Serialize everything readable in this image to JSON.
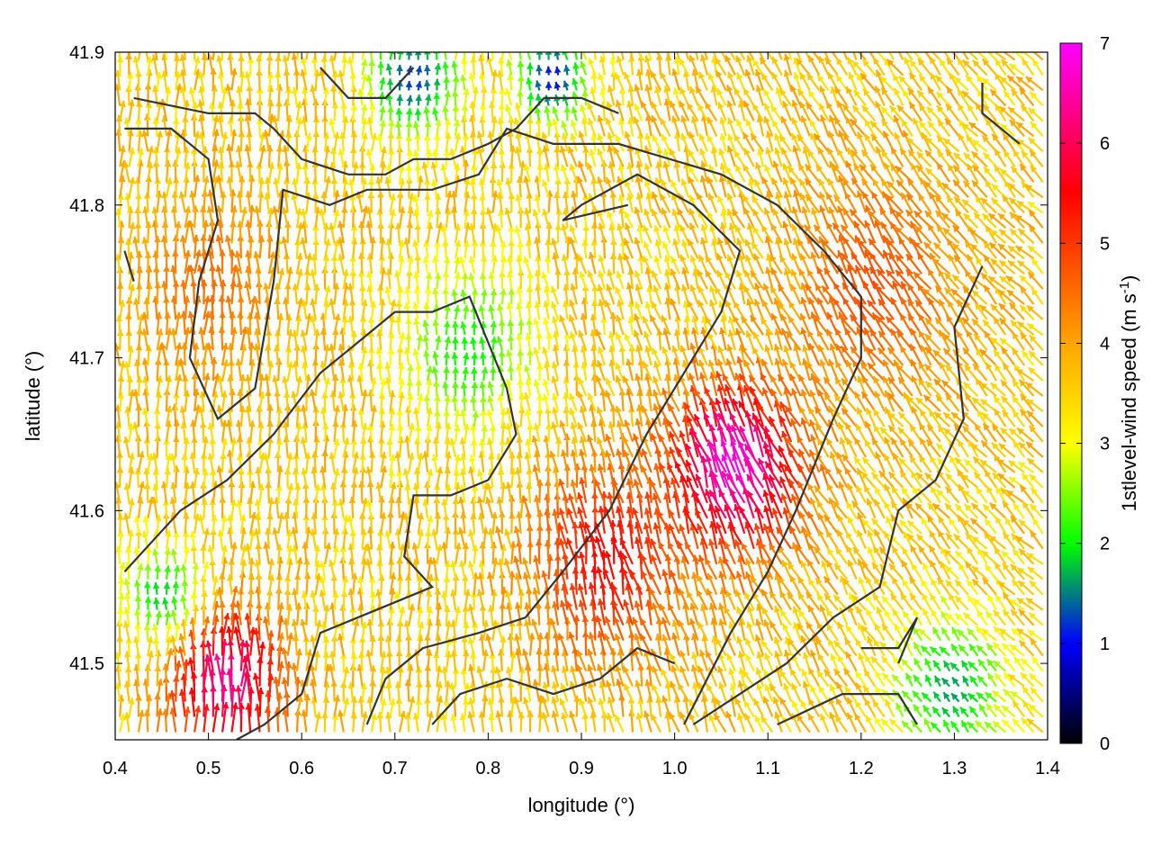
{
  "chart_data": {
    "type": "vector-field",
    "xlabel": "longitude (°)",
    "ylabel": "latitude (°)",
    "colorbar_label_main": "1stlevel-wind speed (m s",
    "colorbar_label_exp": "-1",
    "colorbar_label_close": ")",
    "xlim": [
      0.4,
      1.4
    ],
    "ylim": [
      41.45,
      41.9
    ],
    "xticks": [
      0.4,
      0.5,
      0.6,
      0.7,
      0.8,
      0.9,
      1.0,
      1.1,
      1.2,
      1.3,
      1.4
    ],
    "xtick_labels": [
      "0.4",
      "0.5",
      "0.6",
      "0.7",
      "0.8",
      "0.9",
      "1.0",
      "1.1",
      "1.2",
      "1.3",
      "1.4"
    ],
    "yticks": [
      41.5,
      41.6,
      41.7,
      41.8,
      41.9
    ],
    "ytick_labels": [
      "41.5",
      "41.6",
      "41.7",
      "41.8",
      "41.9"
    ],
    "colorbar": {
      "range": [
        0,
        7
      ],
      "ticks": [
        0,
        1,
        2,
        3,
        4,
        5,
        6,
        7
      ],
      "tick_labels": [
        "0",
        "1",
        "2",
        "3",
        "4",
        "5",
        "6",
        "7"
      ],
      "colors": [
        "#000000",
        "#0000ff",
        "#00ff00",
        "#ffff00",
        "#ffa500",
        "#ff0000",
        "#ff00ff"
      ],
      "color_stops": [
        0,
        1,
        2,
        3,
        4,
        5.5,
        7
      ]
    },
    "wind_field": {
      "grid": {
        "lon_start": 0.405,
        "lon_step": 0.01,
        "lon_count": 100,
        "lat_start": 41.455,
        "lat_step": 0.01,
        "lat_count": 45
      },
      "speed_centers": [
        {
          "lon": 1.07,
          "lat": 41.62,
          "speed": 6.9,
          "radius": 0.07
        },
        {
          "lon": 0.52,
          "lat": 41.48,
          "speed": 6.4,
          "radius": 0.06
        },
        {
          "lon": 0.93,
          "lat": 41.56,
          "speed": 5.5,
          "radius": 0.08
        },
        {
          "lon": 1.22,
          "lat": 41.74,
          "speed": 4.8,
          "radius": 0.09
        },
        {
          "lon": 0.5,
          "lat": 41.74,
          "speed": 4.5,
          "radius": 0.08
        },
        {
          "lon": 0.72,
          "lat": 41.88,
          "speed": 1.2,
          "radius": 0.05
        },
        {
          "lon": 0.87,
          "lat": 41.88,
          "speed": 1.0,
          "radius": 0.04
        },
        {
          "lon": 0.78,
          "lat": 41.7,
          "speed": 2.0,
          "radius": 0.07
        },
        {
          "lon": 1.3,
          "lat": 41.48,
          "speed": 1.6,
          "radius": 0.06
        },
        {
          "lon": 0.45,
          "lat": 41.54,
          "speed": 1.8,
          "radius": 0.04
        }
      ],
      "background_speed": 3.6,
      "direction": "mostly northward, turning north-westward in the eastern half"
    },
    "contours": [
      [
        [
          0.42,
          41.87
        ],
        [
          0.5,
          41.86
        ],
        [
          0.55,
          41.86
        ],
        [
          0.57,
          41.85
        ],
        [
          0.6,
          41.83
        ],
        [
          0.65,
          41.82
        ],
        [
          0.69,
          41.82
        ],
        [
          0.72,
          41.83
        ],
        [
          0.76,
          41.83
        ],
        [
          0.8,
          41.84
        ],
        [
          0.83,
          41.85
        ],
        [
          0.86,
          41.87
        ],
        [
          0.9,
          41.87
        ],
        [
          0.94,
          41.86
        ]
      ],
      [
        [
          0.41,
          41.85
        ],
        [
          0.46,
          41.85
        ],
        [
          0.5,
          41.83
        ],
        [
          0.51,
          41.79
        ],
        [
          0.49,
          41.75
        ],
        [
          0.48,
          41.7
        ],
        [
          0.51,
          41.66
        ],
        [
          0.55,
          41.68
        ],
        [
          0.57,
          41.75
        ],
        [
          0.58,
          41.81
        ],
        [
          0.63,
          41.8
        ],
        [
          0.67,
          41.81
        ],
        [
          0.74,
          41.81
        ],
        [
          0.79,
          41.82
        ],
        [
          0.82,
          41.85
        ],
        [
          0.87,
          41.84
        ],
        [
          0.94,
          41.84
        ],
        [
          1.05,
          41.82
        ],
        [
          1.11,
          41.8
        ],
        [
          1.16,
          41.77
        ],
        [
          1.2,
          41.74
        ],
        [
          1.2,
          41.7
        ],
        [
          1.17,
          41.66
        ],
        [
          1.13,
          41.6
        ],
        [
          1.1,
          41.56
        ],
        [
          1.06,
          41.52
        ],
        [
          1.01,
          41.46
        ]
      ],
      [
        [
          0.41,
          41.56
        ],
        [
          0.47,
          41.6
        ],
        [
          0.52,
          41.62
        ],
        [
          0.57,
          41.65
        ],
        [
          0.62,
          41.69
        ],
        [
          0.66,
          41.71
        ],
        [
          0.7,
          41.73
        ],
        [
          0.74,
          41.73
        ],
        [
          0.78,
          41.74
        ],
        [
          0.8,
          41.71
        ],
        [
          0.82,
          41.68
        ],
        [
          0.83,
          41.65
        ],
        [
          0.8,
          41.62
        ],
        [
          0.76,
          41.61
        ],
        [
          0.72,
          41.61
        ],
        [
          0.71,
          41.57
        ],
        [
          0.74,
          41.55
        ],
        [
          0.7,
          41.54
        ],
        [
          0.66,
          41.53
        ],
        [
          0.62,
          41.52
        ],
        [
          0.6,
          41.48
        ],
        [
          0.56,
          41.46
        ],
        [
          0.53,
          41.45
        ]
      ],
      [
        [
          0.67,
          41.46
        ],
        [
          0.69,
          41.49
        ],
        [
          0.73,
          41.51
        ],
        [
          0.79,
          41.52
        ],
        [
          0.84,
          41.53
        ],
        [
          0.88,
          41.56
        ],
        [
          0.93,
          41.6
        ],
        [
          0.97,
          41.65
        ],
        [
          1.02,
          41.7
        ],
        [
          1.05,
          41.73
        ],
        [
          1.07,
          41.77
        ],
        [
          1.02,
          41.8
        ],
        [
          0.96,
          41.82
        ],
        [
          0.9,
          41.8
        ],
        [
          0.88,
          41.79
        ],
        [
          0.95,
          41.8
        ]
      ],
      [
        [
          1.33,
          41.76
        ],
        [
          1.3,
          41.72
        ],
        [
          1.31,
          41.66
        ],
        [
          1.28,
          41.62
        ],
        [
          1.24,
          41.6
        ],
        [
          1.22,
          41.55
        ],
        [
          1.17,
          41.53
        ],
        [
          1.12,
          41.5
        ],
        [
          1.07,
          41.48
        ],
        [
          1.02,
          41.46
        ]
      ],
      [
        [
          0.74,
          41.46
        ],
        [
          0.77,
          41.48
        ],
        [
          0.82,
          41.49
        ],
        [
          0.87,
          41.48
        ],
        [
          0.92,
          41.49
        ],
        [
          0.96,
          41.51
        ],
        [
          1.0,
          41.5
        ]
      ],
      [
        [
          1.11,
          41.46
        ],
        [
          1.18,
          41.48
        ],
        [
          1.24,
          41.48
        ],
        [
          1.26,
          41.46
        ]
      ],
      [
        [
          1.2,
          41.51
        ],
        [
          1.24,
          41.51
        ],
        [
          1.26,
          41.53
        ],
        [
          1.24,
          41.5
        ]
      ],
      [
        [
          0.41,
          41.77
        ],
        [
          0.42,
          41.75
        ]
      ],
      [
        [
          1.33,
          41.88
        ],
        [
          1.33,
          41.86
        ],
        [
          1.37,
          41.84
        ]
      ],
      [
        [
          0.62,
          41.89
        ],
        [
          0.65,
          41.87
        ],
        [
          0.69,
          41.87
        ],
        [
          0.72,
          41.89
        ]
      ]
    ]
  }
}
